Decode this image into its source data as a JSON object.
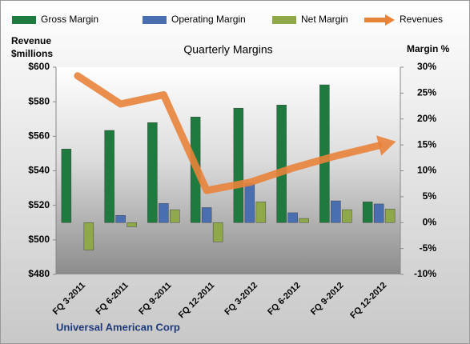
{
  "chart_data": {
    "type": "bar",
    "title": "Quarterly Margins",
    "ylabel": [
      "Revenue",
      "$millions"
    ],
    "y2label": "Margin %",
    "footer": "Universal American Corp",
    "categories": [
      "FQ 3-2011",
      "FQ 6-2011",
      "FQ 9-2011",
      "FQ 12-2011",
      "FQ 3-2012",
      "FQ 6-2012",
      "FQ 9-2012",
      "FQ 12-2012"
    ],
    "series": [
      {
        "name": "Gross Margin",
        "color": "#1f7a3f",
        "axis": "y2",
        "values": [
          14.2,
          17.8,
          19.3,
          20.4,
          22.1,
          22.7,
          26.6,
          4.0
        ]
      },
      {
        "name": "Operating Margin",
        "color": "#4a6fb0",
        "axis": "y2",
        "values": [
          0,
          1.4,
          3.7,
          2.9,
          7.6,
          1.9,
          4.2,
          3.6
        ]
      },
      {
        "name": "Net Margin",
        "color": "#8ea84a",
        "axis": "y2",
        "values": [
          -5.3,
          -0.8,
          2.5,
          -3.7,
          4.0,
          0.8,
          2.5,
          2.6
        ]
      },
      {
        "name": "Revenues",
        "color": "#e8833a",
        "type": "line",
        "values": [
          595,
          578.7,
          584,
          528.6,
          533.3,
          541.6,
          548.6,
          554.6
        ]
      }
    ],
    "ylim": [
      480,
      600
    ],
    "yticks": [
      {
        "value": 480,
        "label": "$480"
      },
      {
        "value": 500,
        "label": "$500"
      },
      {
        "value": 520,
        "label": "$520"
      },
      {
        "value": 540,
        "label": "$540"
      },
      {
        "value": 560,
        "label": "$560"
      },
      {
        "value": 580,
        "label": "$580"
      },
      {
        "value": 600,
        "label": "$600"
      }
    ],
    "y2lim": [
      -10,
      30
    ],
    "y2ticks": [
      {
        "value": -10,
        "label": "-10%"
      },
      {
        "value": -5,
        "label": "-5%"
      },
      {
        "value": 0,
        "label": "0%"
      },
      {
        "value": 5,
        "label": "5%"
      },
      {
        "value": 10,
        "label": "10%"
      },
      {
        "value": 15,
        "label": "15%"
      },
      {
        "value": 20,
        "label": "20%"
      },
      {
        "value": 25,
        "label": "25%"
      },
      {
        "value": 30,
        "label": "30%"
      }
    ]
  }
}
